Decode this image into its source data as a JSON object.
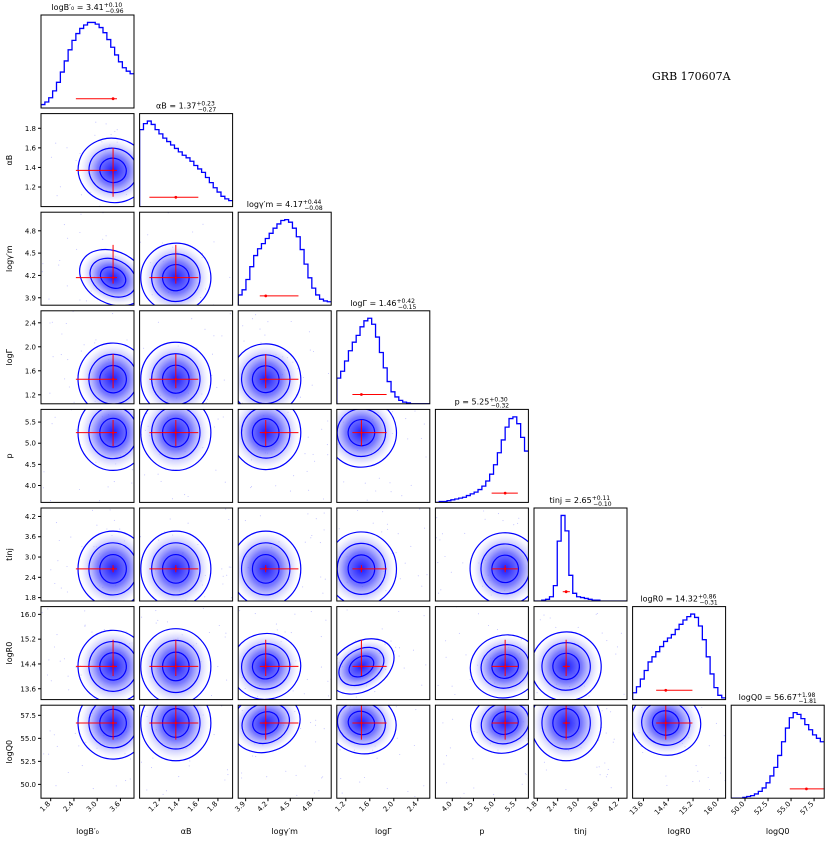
{
  "figure": {
    "title": "GRB 170607A",
    "type": "corner-plot",
    "colors": {
      "contour": "#0000ff",
      "truth": "#ff0000",
      "frame": "#000000",
      "points": "#9999ff"
    }
  },
  "chart_data": {
    "type": "corner",
    "title": "GRB 170607A",
    "parameters": [
      {
        "key": "logB0",
        "label": "logB′₀",
        "summary": {
          "name": "logB′₀",
          "median": "3.41",
          "plus": "+0.10",
          "minus": "−0.96"
        },
        "median": 3.41,
        "lo": 2.45,
        "hi": 3.51,
        "range": [
          1.55,
          3.95
        ],
        "ticks": [
          {
            "v": 1.8,
            "t": "1.8"
          },
          {
            "v": 2.4,
            "t": "2.4"
          },
          {
            "v": 3.0,
            "t": "3.0"
          },
          {
            "v": 3.6,
            "t": "3.6"
          }
        ],
        "hist": [
          0.04,
          0.07,
          0.12,
          0.2,
          0.3,
          0.42,
          0.55,
          0.68,
          0.79,
          0.87,
          0.93,
          0.97,
          1.0,
          1.0,
          0.98,
          0.94,
          0.88,
          0.8,
          0.71,
          0.62,
          0.54,
          0.47,
          0.43,
          0.4
        ]
      },
      {
        "key": "alphaB",
        "label": "αB",
        "summary": {
          "name": "αB",
          "median": "1.37",
          "plus": "+0.23",
          "minus": "−0.27"
        },
        "median": 1.37,
        "lo": 1.1,
        "hi": 1.6,
        "range": [
          1.0,
          1.95
        ],
        "ticks": [
          {
            "v": 1.2,
            "t": "1.2"
          },
          {
            "v": 1.4,
            "t": "1.4"
          },
          {
            "v": 1.6,
            "t": "1.6"
          },
          {
            "v": 1.8,
            "t": "1.8"
          }
        ],
        "hist": [
          0.9,
          0.97,
          1.0,
          0.96,
          0.9,
          0.85,
          0.8,
          0.76,
          0.72,
          0.68,
          0.64,
          0.6,
          0.57,
          0.53,
          0.48,
          0.44,
          0.4,
          0.34,
          0.28,
          0.22,
          0.17,
          0.12,
          0.09,
          0.07
        ]
      },
      {
        "key": "loggm",
        "label": "logγ′m",
        "summary": {
          "name": "logγ′m",
          "median": "4.17",
          "plus": "+0.44",
          "minus": "−0.08"
        },
        "median": 4.17,
        "lo": 4.09,
        "hi": 4.61,
        "range": [
          3.8,
          5.05
        ],
        "ticks": [
          {
            "v": 3.9,
            "t": "3.9"
          },
          {
            "v": 4.2,
            "t": "4.2"
          },
          {
            "v": 4.5,
            "t": "4.5"
          },
          {
            "v": 4.8,
            "t": "4.8"
          }
        ],
        "hist": [
          0.12,
          0.18,
          0.3,
          0.45,
          0.58,
          0.66,
          0.72,
          0.78,
          0.84,
          0.9,
          0.95,
          0.99,
          1.0,
          0.97,
          0.9,
          0.8,
          0.65,
          0.48,
          0.32,
          0.2,
          0.12,
          0.07,
          0.05,
          0.04
        ]
      },
      {
        "key": "logGamma",
        "label": "logΓ",
        "summary": {
          "name": "logΓ",
          "median": "1.46",
          "plus": "+0.42",
          "minus": "−0.15"
        },
        "median": 1.46,
        "lo": 1.31,
        "hi": 1.88,
        "range": [
          1.05,
          2.6
        ],
        "ticks": [
          {
            "v": 1.2,
            "t": "1.2"
          },
          {
            "v": 1.6,
            "t": "1.6"
          },
          {
            "v": 2.0,
            "t": "2.0"
          },
          {
            "v": 2.4,
            "t": "2.4"
          }
        ],
        "hist": [
          0.3,
          0.38,
          0.5,
          0.62,
          0.72,
          0.8,
          0.9,
          0.97,
          1.0,
          0.93,
          0.78,
          0.6,
          0.42,
          0.26,
          0.14,
          0.08,
          0.04,
          0.02,
          0.01,
          0.0,
          0.0,
          0.0,
          0.0,
          0.0
        ]
      },
      {
        "key": "p",
        "label": "p",
        "summary": {
          "name": "p",
          "median": "5.25",
          "plus": "+0.30",
          "minus": "−0.32"
        },
        "median": 5.25,
        "lo": 4.93,
        "hi": 5.55,
        "range": [
          3.6,
          5.8
        ],
        "ticks": [
          {
            "v": 4.0,
            "t": "4.0"
          },
          {
            "v": 4.5,
            "t": "4.5"
          },
          {
            "v": 5.0,
            "t": "5.0"
          },
          {
            "v": 5.5,
            "t": "5.5"
          }
        ],
        "hist": [
          0.0,
          0.01,
          0.01,
          0.02,
          0.03,
          0.04,
          0.05,
          0.06,
          0.08,
          0.1,
          0.12,
          0.15,
          0.19,
          0.25,
          0.33,
          0.44,
          0.58,
          0.73,
          0.88,
          0.98,
          1.0,
          0.92,
          0.76,
          0.6
        ]
      },
      {
        "key": "tinj",
        "label": "tinj",
        "summary": {
          "name": "tinj",
          "median": "2.65",
          "plus": "+0.11",
          "minus": "−0.10"
        },
        "median": 2.65,
        "lo": 2.55,
        "hi": 2.76,
        "range": [
          1.7,
          4.45
        ],
        "ticks": [
          {
            "v": 1.8,
            "t": "1.8"
          },
          {
            "v": 2.4,
            "t": "2.4"
          },
          {
            "v": 3.0,
            "t": "3.0"
          },
          {
            "v": 3.6,
            "t": "3.6"
          },
          {
            "v": 4.2,
            "t": "4.2"
          }
        ],
        "hist": [
          0.0,
          0.0,
          0.01,
          0.02,
          0.05,
          0.18,
          0.7,
          1.0,
          0.82,
          0.3,
          0.09,
          0.05,
          0.04,
          0.03,
          0.02,
          0.01,
          0.01,
          0.0,
          0.0,
          0.0,
          0.0,
          0.0,
          0.0,
          0.0
        ]
      },
      {
        "key": "logR0",
        "label": "logR0",
        "summary": {
          "name": "logR0",
          "median": "14.32",
          "plus": "+0.86",
          "minus": "−0.31"
        },
        "median": 14.32,
        "lo": 14.01,
        "hi": 15.18,
        "range": [
          13.25,
          16.25
        ],
        "ticks": [
          {
            "v": 13.6,
            "t": "13.6"
          },
          {
            "v": 14.4,
            "t": "14.4"
          },
          {
            "v": 15.2,
            "t": "15.2"
          },
          {
            "v": 16.0,
            "t": "16.0"
          }
        ],
        "hist": [
          0.08,
          0.15,
          0.24,
          0.34,
          0.44,
          0.5,
          0.56,
          0.62,
          0.68,
          0.72,
          0.76,
          0.82,
          0.88,
          0.93,
          0.97,
          1.0,
          0.96,
          0.86,
          0.7,
          0.5,
          0.3,
          0.14,
          0.05,
          0.02
        ]
      },
      {
        "key": "logQ0",
        "label": "logQ0",
        "summary": {
          "name": "logQ0",
          "median": "56.67",
          "plus": "+1.98",
          "minus": "−1.81"
        },
        "median": 56.67,
        "lo": 54.86,
        "hi": 58.65,
        "range": [
          48.5,
          58.6
        ],
        "ticks": [
          {
            "v": 50.0,
            "t": "50.0"
          },
          {
            "v": 52.5,
            "t": "52.5"
          },
          {
            "v": 55.0,
            "t": "55.0"
          },
          {
            "v": 57.5,
            "t": "57.5"
          }
        ],
        "hist": [
          0.0,
          0.0,
          0.0,
          0.01,
          0.02,
          0.03,
          0.05,
          0.08,
          0.12,
          0.18,
          0.26,
          0.36,
          0.5,
          0.66,
          0.82,
          0.94,
          1.0,
          0.98,
          0.93,
          0.86,
          0.8,
          0.74,
          0.7,
          0.66
        ]
      }
    ],
    "correlations": {
      "1_0": -0.35,
      "2_0": -0.72,
      "2_1": 0.2,
      "3_0": 0.1,
      "3_1": 0.05,
      "3_2": 0.15,
      "4_0": 0.0,
      "4_1": 0.0,
      "4_2": 0.05,
      "4_3": 0.2,
      "5_0": 0.0,
      "5_1": 0.0,
      "5_2": 0.0,
      "5_3": 0.05,
      "5_4": 0.1,
      "6_0": 0.1,
      "6_1": 0.0,
      "6_2": 0.3,
      "6_3": 0.82,
      "6_4": 0.4,
      "6_5": 0.2,
      "7_0": 0.1,
      "7_1": 0.0,
      "7_2": 0.55,
      "7_3": -0.45,
      "7_4": 0.5,
      "7_5": 0.0,
      "7_6": -0.35
    }
  }
}
